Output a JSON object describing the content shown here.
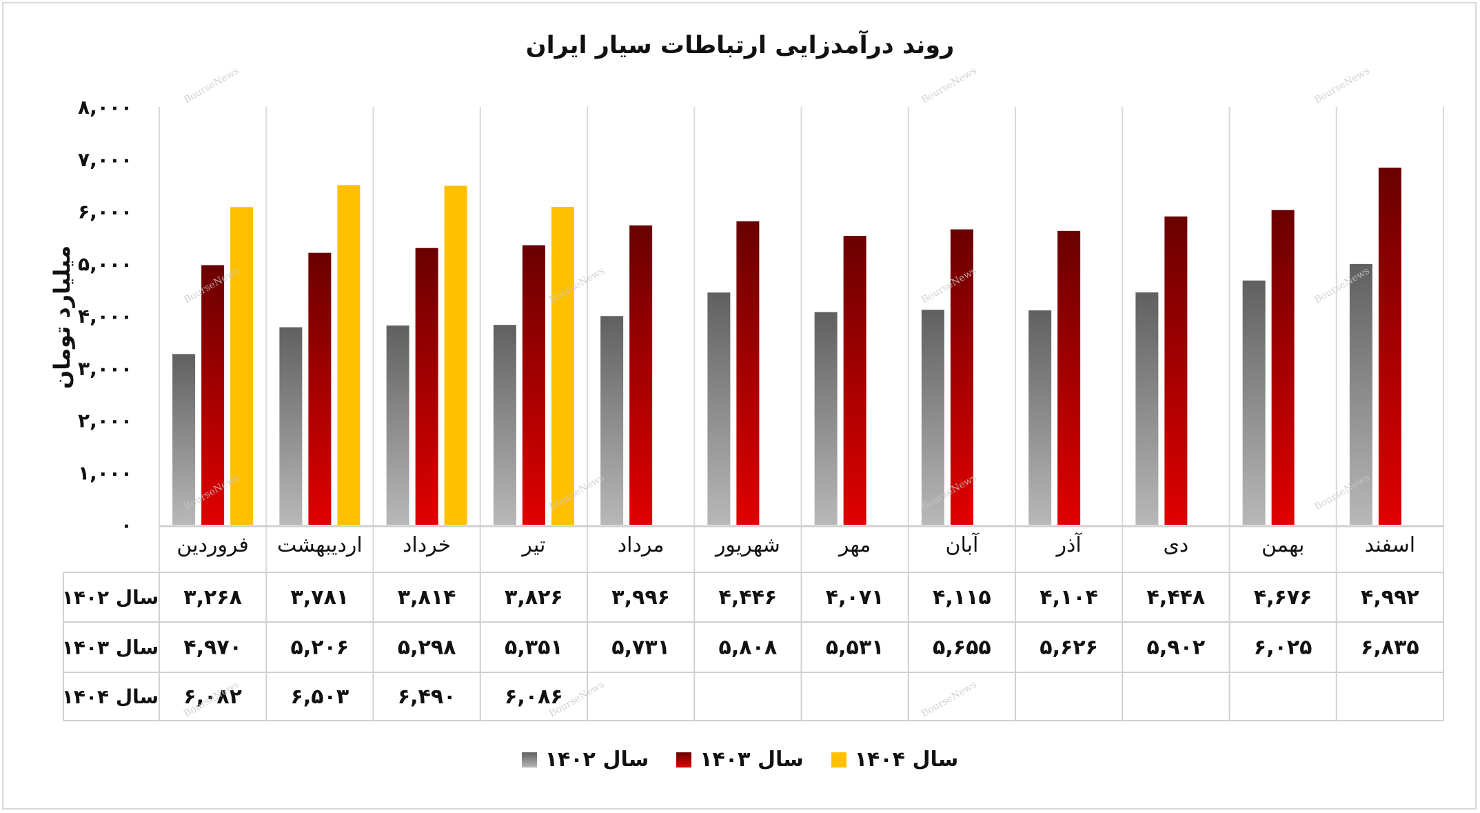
{
  "chart_data": {
    "type": "bar",
    "title": "روند درآمدزایی ارتباطات سیار ایران",
    "ylabel": "میلیارد تومان",
    "ylim": [
      0,
      8000
    ],
    "yticks": [
      "۰",
      "۱,۰۰۰",
      "۲,۰۰۰",
      "۳,۰۰۰",
      "۴,۰۰۰",
      "۵,۰۰۰",
      "۶,۰۰۰",
      "۷,۰۰۰",
      "۸,۰۰۰"
    ],
    "categories": [
      "فروردین",
      "اردیبهشت",
      "خرداد",
      "تیر",
      "مرداد",
      "شهریور",
      "مهر",
      "آبان",
      "آذر",
      "دی",
      "بهمن",
      "اسفند"
    ],
    "series": [
      {
        "name": "سال ۱۴۰۲",
        "color": "#8c8c8c",
        "values": [
          3268,
          3781,
          3814,
          3826,
          3996,
          4446,
          4071,
          4115,
          4104,
          4448,
          4676,
          4992
        ],
        "labels": [
          "۳,۲۶۸",
          "۳,۷۸۱",
          "۳,۸۱۴",
          "۳,۸۲۶",
          "۳,۹۹۶",
          "۴,۴۴۶",
          "۴,۰۷۱",
          "۴,۱۱۵",
          "۴,۱۰۴",
          "۴,۴۴۸",
          "۴,۶۷۶",
          "۴,۹۹۲"
        ]
      },
      {
        "name": "سال ۱۴۰۳",
        "color": "#b00000",
        "values": [
          4970,
          5206,
          5298,
          5351,
          5731,
          5808,
          5531,
          5655,
          5626,
          5902,
          6025,
          6835
        ],
        "labels": [
          "۴,۹۷۰",
          "۵,۲۰۶",
          "۵,۲۹۸",
          "۵,۳۵۱",
          "۵,۷۳۱",
          "۵,۸۰۸",
          "۵,۵۳۱",
          "۵,۶۵۵",
          "۵,۶۲۶",
          "۵,۹۰۲",
          "۶,۰۲۵",
          "۶,۸۳۵"
        ]
      },
      {
        "name": "سال ۱۴۰۴",
        "color": "#ffc000",
        "values": [
          6082,
          6503,
          6490,
          6086,
          null,
          null,
          null,
          null,
          null,
          null,
          null,
          null
        ],
        "labels": [
          "۶,۰۸۲",
          "۶,۵۰۳",
          "۶,۴۹۰",
          "۶,۰۸۶",
          "",
          "",
          "",
          "",
          "",
          "",
          "",
          ""
        ]
      }
    ],
    "legend": "bottom",
    "grid": "vertical",
    "data_table": true
  },
  "watermark": "BourseNews"
}
